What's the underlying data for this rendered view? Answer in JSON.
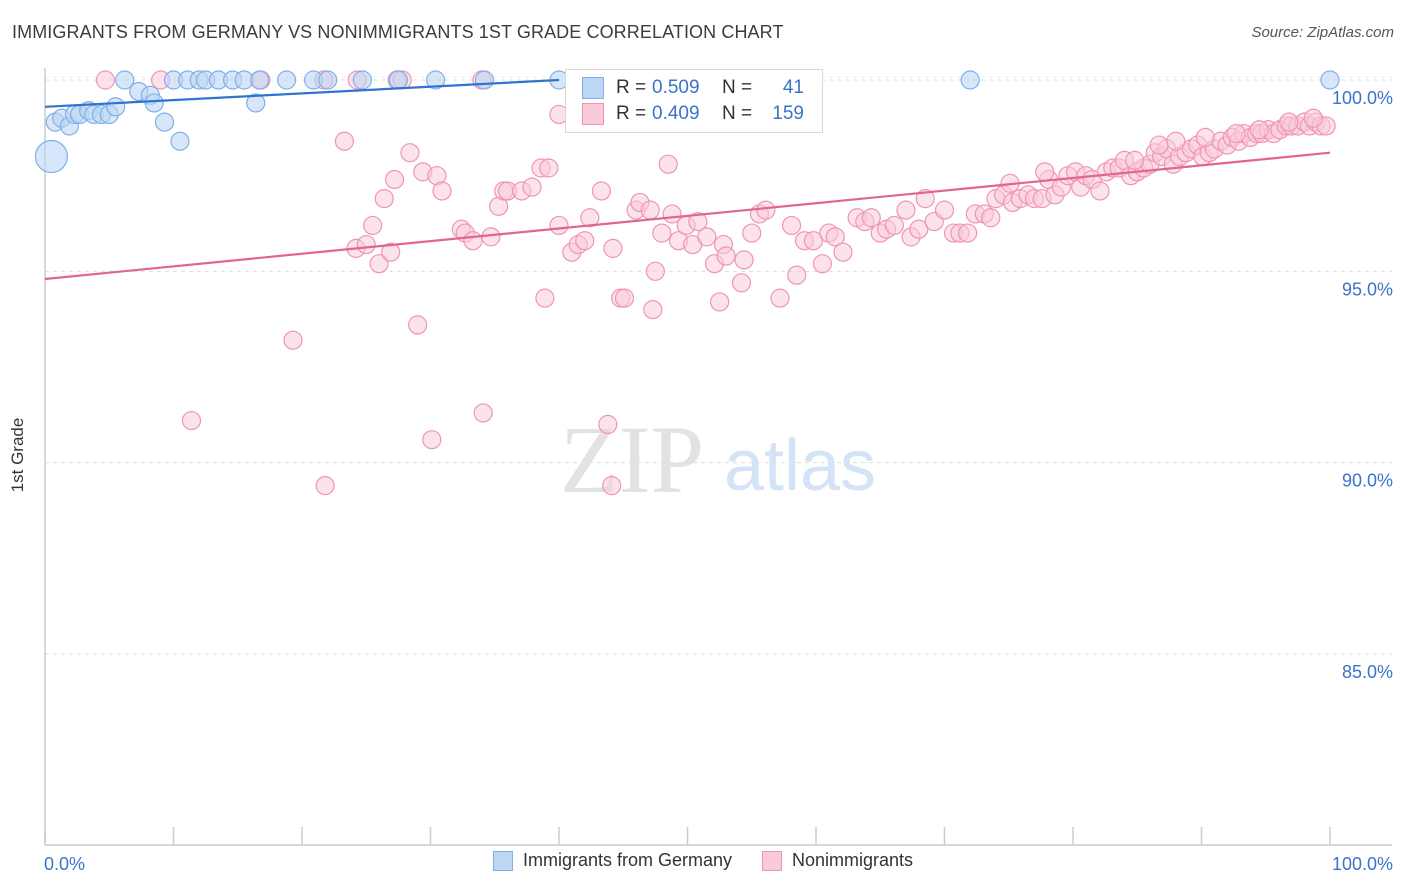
{
  "title": "IMMIGRANTS FROM GERMANY VS NONIMMIGRANTS 1ST GRADE CORRELATION CHART",
  "source": "Source: ZipAtlas.com",
  "watermark": {
    "zip": "ZIP",
    "atlas": "atlas"
  },
  "colors": {
    "blue": "#7fb0e8",
    "blue_fill": "#bcd6f4",
    "blue_line": "#2f74cf",
    "pink": "#ef95b4",
    "pink_fill": "#f9cad9",
    "pink_line": "#e0668f",
    "axis_text": "#3a73c9",
    "grid": "#dddddd"
  },
  "stats": {
    "rows": [
      {
        "series": "Immigrants from Germany",
        "r_label": "R =",
        "r": "0.509",
        "n_label": "N =",
        "n": "41"
      },
      {
        "series": "Nonimmigrants",
        "r_label": "R =",
        "r": "0.409",
        "n_label": "N =",
        "n": "159"
      }
    ]
  },
  "legend": [
    "Immigrants from Germany",
    "Nonimmigrants"
  ],
  "chart_data": {
    "type": "scatter",
    "title": "IMMIGRANTS FROM GERMANY VS NONIMMIGRANTS 1ST GRADE CORRELATION CHART",
    "xlabel": "",
    "ylabel": "1st Grade",
    "xlim": [
      0,
      100
    ],
    "ylim": [
      80.5,
      100.8
    ],
    "x_tick_labels": [
      "0.0%",
      "100.0%"
    ],
    "y_ticks": [
      85,
      90,
      95,
      100
    ],
    "y_tick_labels": [
      "85.0%",
      "90.0%",
      "95.0%",
      "100.0%"
    ],
    "series": [
      {
        "name": "Immigrants from Germany",
        "trend": {
          "x": [
            0,
            40
          ],
          "y": [
            99.3,
            100.0
          ]
        },
        "points": [
          [
            0.5,
            98.0,
            16
          ],
          [
            0.8,
            98.9,
            9
          ],
          [
            1.3,
            99.0,
            9
          ],
          [
            1.9,
            98.8,
            9
          ],
          [
            2.3,
            99.1,
            9
          ],
          [
            2.7,
            99.1,
            9
          ],
          [
            3.4,
            99.2,
            9
          ],
          [
            3.8,
            99.1,
            9
          ],
          [
            4.4,
            99.1,
            9
          ],
          [
            5.0,
            99.1,
            9
          ],
          [
            5.5,
            99.3,
            9
          ],
          [
            6.2,
            100.0,
            9
          ],
          [
            7.3,
            99.7,
            9
          ],
          [
            8.2,
            99.6,
            9
          ],
          [
            8.5,
            99.4,
            9
          ],
          [
            9.3,
            98.9,
            9
          ],
          [
            10.0,
            100.0,
            9
          ],
          [
            10.5,
            98.4,
            9
          ],
          [
            11.1,
            100.0,
            9
          ],
          [
            12.0,
            100.0,
            9
          ],
          [
            12.5,
            100.0,
            9
          ],
          [
            13.5,
            100.0,
            9
          ],
          [
            14.6,
            100.0,
            9
          ],
          [
            15.5,
            100.0,
            9
          ],
          [
            16.4,
            99.4,
            9
          ],
          [
            16.7,
            100.0,
            9
          ],
          [
            18.8,
            100.0,
            9
          ],
          [
            20.9,
            100.0,
            9
          ],
          [
            22.0,
            100.0,
            9
          ],
          [
            24.7,
            100.0,
            9
          ],
          [
            27.5,
            100.0,
            9
          ],
          [
            30.4,
            100.0,
            9
          ],
          [
            34.2,
            100.0,
            9
          ],
          [
            40.0,
            100.0,
            9
          ],
          [
            72.0,
            100.0,
            9
          ],
          [
            100.0,
            100.0,
            9
          ]
        ]
      },
      {
        "name": "Nonimmigrants",
        "trend": {
          "x": [
            0,
            100
          ],
          "y": [
            94.8,
            98.1
          ]
        },
        "points": [
          [
            4.7,
            100.0
          ],
          [
            9.0,
            100.0
          ],
          [
            16.8,
            100.0
          ],
          [
            21.7,
            100.0
          ],
          [
            24.3,
            100.0
          ],
          [
            27.4,
            100.0
          ],
          [
            27.8,
            100.0
          ],
          [
            34.0,
            100.0
          ],
          [
            40.0,
            99.1
          ],
          [
            11.4,
            91.1
          ],
          [
            19.3,
            93.2
          ],
          [
            21.8,
            89.4
          ],
          [
            23.3,
            98.4
          ],
          [
            24.2,
            95.6
          ],
          [
            25.0,
            95.7
          ],
          [
            25.5,
            96.2
          ],
          [
            26.0,
            95.2
          ],
          [
            26.4,
            96.9
          ],
          [
            26.9,
            95.5
          ],
          [
            27.2,
            97.4
          ],
          [
            28.4,
            98.1
          ],
          [
            29.0,
            93.6
          ],
          [
            29.4,
            97.6
          ],
          [
            30.1,
            90.6
          ],
          [
            30.5,
            97.5
          ],
          [
            30.9,
            97.1
          ],
          [
            32.4,
            96.1
          ],
          [
            32.7,
            96.0
          ],
          [
            33.3,
            95.8
          ],
          [
            34.1,
            91.3
          ],
          [
            34.7,
            95.9
          ],
          [
            35.3,
            96.7
          ],
          [
            35.7,
            97.1
          ],
          [
            36.0,
            97.1
          ],
          [
            37.1,
            97.1
          ],
          [
            37.9,
            97.2
          ],
          [
            38.6,
            97.7
          ],
          [
            38.9,
            94.3
          ],
          [
            39.2,
            97.7
          ],
          [
            40.0,
            96.2
          ],
          [
            41.0,
            95.5
          ],
          [
            41.5,
            95.7
          ],
          [
            42.0,
            95.8
          ],
          [
            42.4,
            96.4
          ],
          [
            43.3,
            97.1
          ],
          [
            43.8,
            91.0
          ],
          [
            44.1,
            89.4
          ],
          [
            44.2,
            95.6
          ],
          [
            44.8,
            94.3
          ],
          [
            45.1,
            94.3
          ],
          [
            46.0,
            96.6
          ],
          [
            46.3,
            96.8
          ],
          [
            47.1,
            96.6
          ],
          [
            47.3,
            94.0
          ],
          [
            47.5,
            95.0
          ],
          [
            48.0,
            96.0
          ],
          [
            48.5,
            97.8
          ],
          [
            48.8,
            96.5
          ],
          [
            49.3,
            95.8
          ],
          [
            49.9,
            96.2
          ],
          [
            50.4,
            95.7
          ],
          [
            50.8,
            96.3
          ],
          [
            51.5,
            95.9
          ],
          [
            52.1,
            95.2
          ],
          [
            52.5,
            94.2
          ],
          [
            52.8,
            95.7
          ],
          [
            53.0,
            95.4
          ],
          [
            54.2,
            94.7
          ],
          [
            54.4,
            95.3
          ],
          [
            55.0,
            96.0
          ],
          [
            55.6,
            96.5
          ],
          [
            56.1,
            96.6
          ],
          [
            57.2,
            94.3
          ],
          [
            58.1,
            96.2
          ],
          [
            58.5,
            94.9
          ],
          [
            59.1,
            95.8
          ],
          [
            59.8,
            95.8
          ],
          [
            60.5,
            95.2
          ],
          [
            61.0,
            96.0
          ],
          [
            61.5,
            95.9
          ],
          [
            62.1,
            95.5
          ],
          [
            63.2,
            96.4
          ],
          [
            63.8,
            96.3
          ],
          [
            64.3,
            96.4
          ],
          [
            65.0,
            96.0
          ],
          [
            65.5,
            96.1
          ],
          [
            66.1,
            96.2
          ],
          [
            67.0,
            96.6
          ],
          [
            67.4,
            95.9
          ],
          [
            68.0,
            96.1
          ],
          [
            68.5,
            96.9
          ],
          [
            69.2,
            96.3
          ],
          [
            70.0,
            96.6
          ],
          [
            70.7,
            96.0
          ],
          [
            71.2,
            96.0
          ],
          [
            71.8,
            96.0
          ],
          [
            72.4,
            96.5
          ],
          [
            73.1,
            96.5
          ],
          [
            73.6,
            96.4
          ],
          [
            74.0,
            96.9
          ],
          [
            74.6,
            97.0
          ],
          [
            75.3,
            96.8
          ],
          [
            75.9,
            96.9
          ],
          [
            76.5,
            97.0
          ],
          [
            77.0,
            96.9
          ],
          [
            77.6,
            96.9
          ],
          [
            78.1,
            97.4
          ],
          [
            78.6,
            97.0
          ],
          [
            79.1,
            97.2
          ],
          [
            79.6,
            97.5
          ],
          [
            80.2,
            97.6
          ],
          [
            80.6,
            97.2
          ],
          [
            81.0,
            97.5
          ],
          [
            81.5,
            97.4
          ],
          [
            82.1,
            97.1
          ],
          [
            82.6,
            97.6
          ],
          [
            83.1,
            97.7
          ],
          [
            83.6,
            97.7
          ],
          [
            84.0,
            97.9
          ],
          [
            84.5,
            97.5
          ],
          [
            85.0,
            97.6
          ],
          [
            85.5,
            97.7
          ],
          [
            86.0,
            97.8
          ],
          [
            86.4,
            98.1
          ],
          [
            86.9,
            98.0
          ],
          [
            87.3,
            98.2
          ],
          [
            87.8,
            97.8
          ],
          [
            88.3,
            98.0
          ],
          [
            88.8,
            98.1
          ],
          [
            89.2,
            98.2
          ],
          [
            89.7,
            98.3
          ],
          [
            90.1,
            98.0
          ],
          [
            90.6,
            98.1
          ],
          [
            91.0,
            98.2
          ],
          [
            91.5,
            98.4
          ],
          [
            92.0,
            98.3
          ],
          [
            92.4,
            98.5
          ],
          [
            92.9,
            98.4
          ],
          [
            93.3,
            98.6
          ],
          [
            93.8,
            98.5
          ],
          [
            94.3,
            98.6
          ],
          [
            94.7,
            98.6
          ],
          [
            95.2,
            98.7
          ],
          [
            95.6,
            98.6
          ],
          [
            96.1,
            98.7
          ],
          [
            96.6,
            98.8
          ],
          [
            97.0,
            98.8
          ],
          [
            97.5,
            98.8
          ],
          [
            98.0,
            98.9
          ],
          [
            98.4,
            98.8
          ],
          [
            98.9,
            98.9
          ],
          [
            99.3,
            98.8
          ],
          [
            99.7,
            98.8
          ],
          [
            84.8,
            97.9
          ],
          [
            86.7,
            98.3
          ],
          [
            88.0,
            98.4
          ],
          [
            90.3,
            98.5
          ],
          [
            92.7,
            98.6
          ],
          [
            94.5,
            98.7
          ],
          [
            96.8,
            98.9
          ],
          [
            98.7,
            99.0
          ],
          [
            75.1,
            97.3
          ],
          [
            77.8,
            97.6
          ]
        ]
      }
    ]
  }
}
